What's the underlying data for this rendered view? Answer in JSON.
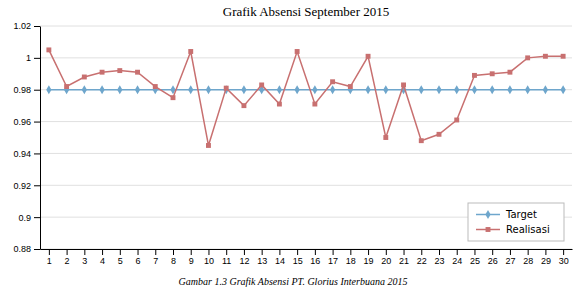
{
  "chart_data": {
    "type": "line",
    "title": "Grafik Absensi September 2015",
    "xlabel": "Gambar 1.3 Grafik Absensi PT. Glorius Interbuana 2015",
    "x": [
      1,
      2,
      3,
      4,
      5,
      6,
      7,
      8,
      9,
      10,
      11,
      12,
      13,
      14,
      15,
      16,
      17,
      18,
      19,
      20,
      21,
      22,
      23,
      24,
      25,
      26,
      27,
      28,
      29,
      30
    ],
    "series": [
      {
        "name": "Target",
        "color": "#6EA6CC",
        "marker": "diamond",
        "values": [
          0.98,
          0.98,
          0.98,
          0.98,
          0.98,
          0.98,
          0.98,
          0.98,
          0.98,
          0.98,
          0.98,
          0.98,
          0.98,
          0.98,
          0.98,
          0.98,
          0.98,
          0.98,
          0.98,
          0.98,
          0.98,
          0.98,
          0.98,
          0.98,
          0.98,
          0.98,
          0.98,
          0.98,
          0.98,
          0.98
        ]
      },
      {
        "name": "Realisasi",
        "color": "#C87070",
        "marker": "square",
        "values": [
          1.005,
          0.982,
          0.988,
          0.991,
          0.992,
          0.991,
          0.982,
          0.975,
          1.004,
          0.945,
          0.981,
          0.97,
          0.983,
          0.971,
          1.004,
          0.971,
          0.985,
          0.982,
          1.001,
          0.95,
          0.983,
          0.948,
          0.952,
          0.961,
          0.989,
          0.99,
          0.991,
          1.0,
          1.001,
          1.001
        ]
      }
    ],
    "xlim": [
      0.5,
      30.5
    ],
    "xticks": [
      1,
      2,
      3,
      4,
      5,
      6,
      7,
      8,
      9,
      10,
      11,
      12,
      13,
      14,
      15,
      16,
      17,
      18,
      19,
      20,
      21,
      22,
      23,
      24,
      25,
      26,
      27,
      28,
      29,
      30
    ],
    "ylim": [
      0.88,
      1.02
    ],
    "yticks": [
      0.88,
      0.9,
      0.92,
      0.94,
      0.96,
      0.98,
      1,
      1.02
    ],
    "grid": "y",
    "legend": "lower right"
  }
}
